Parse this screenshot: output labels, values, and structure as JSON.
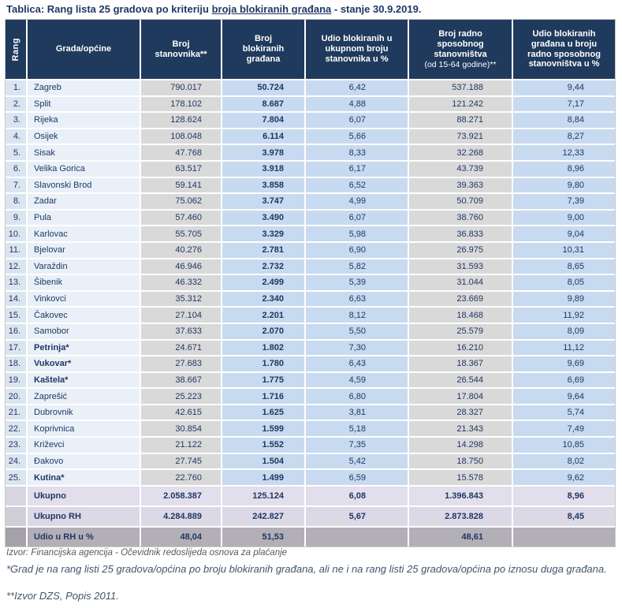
{
  "title": {
    "prefix": "Tablica: Rang lista 25 gradova po kriteriju ",
    "underlined": "broja blokiranih građana",
    "suffix": " - stanje 30.9.2019."
  },
  "colors": {
    "header_navy": "#1f3a5c",
    "text_navy": "#1f3864",
    "blue_cell": "#c7daf0",
    "light_blue_cell": "#dbe5f1",
    "city_cell": "#eaf0f8",
    "gray_cell": "#d9d9d9",
    "total_row": "#e2deec",
    "share_row": "#b2afb6"
  },
  "table": {
    "headers": {
      "rank": "Rang",
      "city": "Grada/općine",
      "population": "Broj\nstanovnika**",
      "blocked": "Broj\nblokiranih\ngrađana",
      "share_total": "Udio blokiranih u\nukupnom broju\nstanovnika u %",
      "working_age": "Broj radno\nsposobnog\nstanovništva",
      "working_age_sub": "(od 15-64 godine)**",
      "share_working": "Udio blokiranih\ngrađana u broju\nradno sposobnog\nstanovništva u %"
    },
    "rows": [
      {
        "rank": "1.",
        "city": "Zagreb",
        "bold": false,
        "population": "790.017",
        "blocked": "50.724",
        "share_total": "6,42",
        "working_age": "537.188",
        "share_working": "9,44"
      },
      {
        "rank": "2.",
        "city": "Split",
        "bold": false,
        "population": "178.102",
        "blocked": "8.687",
        "share_total": "4,88",
        "working_age": "121.242",
        "share_working": "7,17"
      },
      {
        "rank": "3.",
        "city": "Rijeka",
        "bold": false,
        "population": "128.624",
        "blocked": "7.804",
        "share_total": "6,07",
        "working_age": "88.271",
        "share_working": "8,84"
      },
      {
        "rank": "4.",
        "city": "Osijek",
        "bold": false,
        "population": "108.048",
        "blocked": "6.114",
        "share_total": "5,66",
        "working_age": "73.921",
        "share_working": "8,27"
      },
      {
        "rank": "5.",
        "city": "Sisak",
        "bold": false,
        "population": "47.768",
        "blocked": "3.978",
        "share_total": "8,33",
        "working_age": "32.268",
        "share_working": "12,33"
      },
      {
        "rank": "6.",
        "city": "Velika Gorica",
        "bold": false,
        "population": "63.517",
        "blocked": "3.918",
        "share_total": "6,17",
        "working_age": "43.739",
        "share_working": "8,96"
      },
      {
        "rank": "7.",
        "city": "Slavonski Brod",
        "bold": false,
        "population": "59.141",
        "blocked": "3.858",
        "share_total": "6,52",
        "working_age": "39.363",
        "share_working": "9,80"
      },
      {
        "rank": "8.",
        "city": "Zadar",
        "bold": false,
        "population": "75.062",
        "blocked": "3.747",
        "share_total": "4,99",
        "working_age": "50.709",
        "share_working": "7,39"
      },
      {
        "rank": "9.",
        "city": "Pula",
        "bold": false,
        "population": "57.460",
        "blocked": "3.490",
        "share_total": "6,07",
        "working_age": "38.760",
        "share_working": "9,00"
      },
      {
        "rank": "10.",
        "city": "Karlovac",
        "bold": false,
        "population": "55.705",
        "blocked": "3.329",
        "share_total": "5,98",
        "working_age": "36.833",
        "share_working": "9,04"
      },
      {
        "rank": "11.",
        "city": "Bjelovar",
        "bold": false,
        "population": "40.276",
        "blocked": "2.781",
        "share_total": "6,90",
        "working_age": "26.975",
        "share_working": "10,31"
      },
      {
        "rank": "12.",
        "city": "Varaždin",
        "bold": false,
        "population": "46.946",
        "blocked": "2.732",
        "share_total": "5,82",
        "working_age": "31.593",
        "share_working": "8,65"
      },
      {
        "rank": "13.",
        "city": "Šibenik",
        "bold": false,
        "population": "46.332",
        "blocked": "2.499",
        "share_total": "5,39",
        "working_age": "31.044",
        "share_working": "8,05"
      },
      {
        "rank": "14.",
        "city": "Vinkovci",
        "bold": false,
        "population": "35.312",
        "blocked": "2.340",
        "share_total": "6,63",
        "working_age": "23.669",
        "share_working": "9,89"
      },
      {
        "rank": "15.",
        "city": "Čakovec",
        "bold": false,
        "population": "27.104",
        "blocked": "2.201",
        "share_total": "8,12",
        "working_age": "18.468",
        "share_working": "11,92"
      },
      {
        "rank": "16.",
        "city": "Samobor",
        "bold": false,
        "population": "37.633",
        "blocked": "2.070",
        "share_total": "5,50",
        "working_age": "25.579",
        "share_working": "8,09"
      },
      {
        "rank": "17.",
        "city": "Petrinja*",
        "bold": true,
        "population": "24.671",
        "blocked": "1.802",
        "share_total": "7,30",
        "working_age": "16.210",
        "share_working": "11,12"
      },
      {
        "rank": "18.",
        "city": "Vukovar*",
        "bold": true,
        "population": "27.683",
        "blocked": "1.780",
        "share_total": "6,43",
        "working_age": "18.367",
        "share_working": "9,69"
      },
      {
        "rank": "19.",
        "city": "Kaštela*",
        "bold": true,
        "population": "38.667",
        "blocked": "1.775",
        "share_total": "4,59",
        "working_age": "26.544",
        "share_working": "6,69"
      },
      {
        "rank": "20.",
        "city": "Zaprešić",
        "bold": false,
        "population": "25.223",
        "blocked": "1.716",
        "share_total": "6,80",
        "working_age": "17.804",
        "share_working": "9,64"
      },
      {
        "rank": "21.",
        "city": "Dubrovnik",
        "bold": false,
        "population": "42.615",
        "blocked": "1.625",
        "share_total": "3,81",
        "working_age": "28.327",
        "share_working": "5,74"
      },
      {
        "rank": "22.",
        "city": "Koprivnica",
        "bold": false,
        "population": "30.854",
        "blocked": "1.599",
        "share_total": "5,18",
        "working_age": "21.343",
        "share_working": "7,49"
      },
      {
        "rank": "23.",
        "city": "Križevci",
        "bold": false,
        "population": "21.122",
        "blocked": "1.552",
        "share_total": "7,35",
        "working_age": "14.298",
        "share_working": "10,85"
      },
      {
        "rank": "24.",
        "city": "Đakovo",
        "bold": false,
        "population": "27.745",
        "blocked": "1.504",
        "share_total": "5,42",
        "working_age": "18.750",
        "share_working": "8,02"
      },
      {
        "rank": "25.",
        "city": "Kutina*",
        "bold": true,
        "population": "22.760",
        "blocked": "1.499",
        "share_total": "6,59",
        "working_age": "15.578",
        "share_working": "9,62"
      }
    ],
    "summary": [
      {
        "label": "Ukupno",
        "style": "total",
        "population": "2.058.387",
        "blocked": "125.124",
        "share_total": "6,08",
        "working_age": "1.396.843",
        "share_working": "8,96"
      },
      {
        "label": "Ukupno RH",
        "style": "total_rh",
        "population": "4.284.889",
        "blocked": "242.827",
        "share_total": "5,67",
        "working_age": "2.873.828",
        "share_working": "8,45"
      },
      {
        "label": "Udio u RH u %",
        "style": "share",
        "population": "48,04",
        "blocked": "51,53",
        "share_total": "",
        "working_age": "48,61",
        "share_working": ""
      }
    ]
  },
  "footnotes": {
    "source": "Izvor: Financijska agencija - Očevidnik redoslijeda osnova za plaćanje",
    "star": "*Grad je na rang listi 25 gradova/općina po broju blokiranih građana, ali ne i na rang listi 25 gradova/općina po iznosu duga građana.",
    "double_star": "**Izvor DZS, Popis 2011."
  }
}
